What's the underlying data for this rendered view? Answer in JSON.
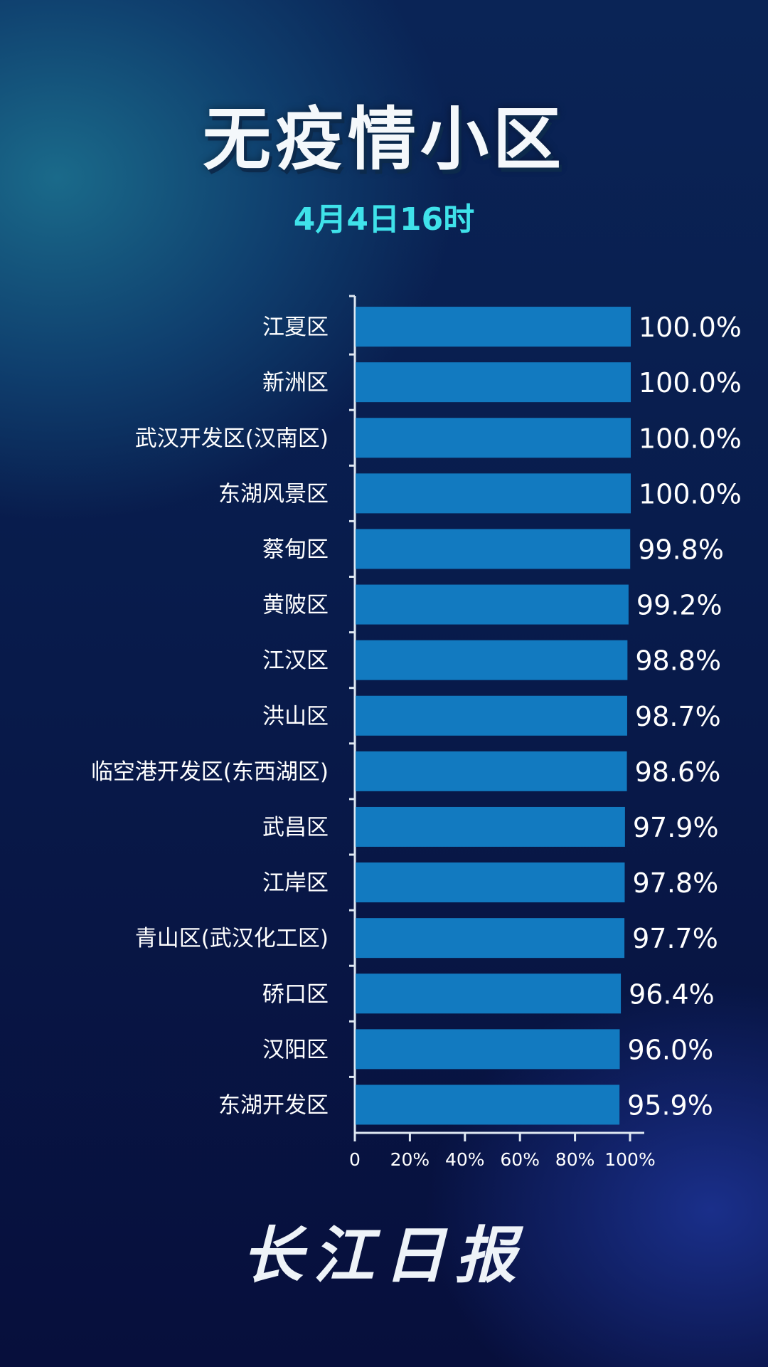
{
  "title": "无疫情小区",
  "subtitle": "4月4日16时",
  "logo_text": "长江日报",
  "chart_data": {
    "type": "bar",
    "orientation": "horizontal",
    "categories": [
      "江夏区",
      "新洲区",
      "武汉开发区(汉南区)",
      "东湖风景区",
      "蔡甸区",
      "黄陂区",
      "江汉区",
      "洪山区",
      "临空港开发区(东西湖区)",
      "武昌区",
      "江岸区",
      "青山区(武汉化工区)",
      "硚口区",
      "汉阳区",
      "东湖开发区"
    ],
    "values": [
      100.0,
      100.0,
      100.0,
      100.0,
      99.8,
      99.2,
      98.8,
      98.7,
      98.6,
      97.9,
      97.8,
      97.7,
      96.4,
      96.0,
      95.9
    ],
    "value_labels": [
      "100.0%",
      "100.0%",
      "100.0%",
      "100.0%",
      "99.8%",
      "99.2%",
      "98.8%",
      "98.7%",
      "98.6%",
      "97.9%",
      "97.8%",
      "97.7%",
      "96.4%",
      "96.0%",
      "95.9%"
    ],
    "xlim": [
      0,
      100
    ],
    "xticks": [
      "0",
      "20%",
      "40%",
      "60%",
      "80%",
      "100%"
    ],
    "grid": false,
    "bar_color": "#127ac0"
  }
}
